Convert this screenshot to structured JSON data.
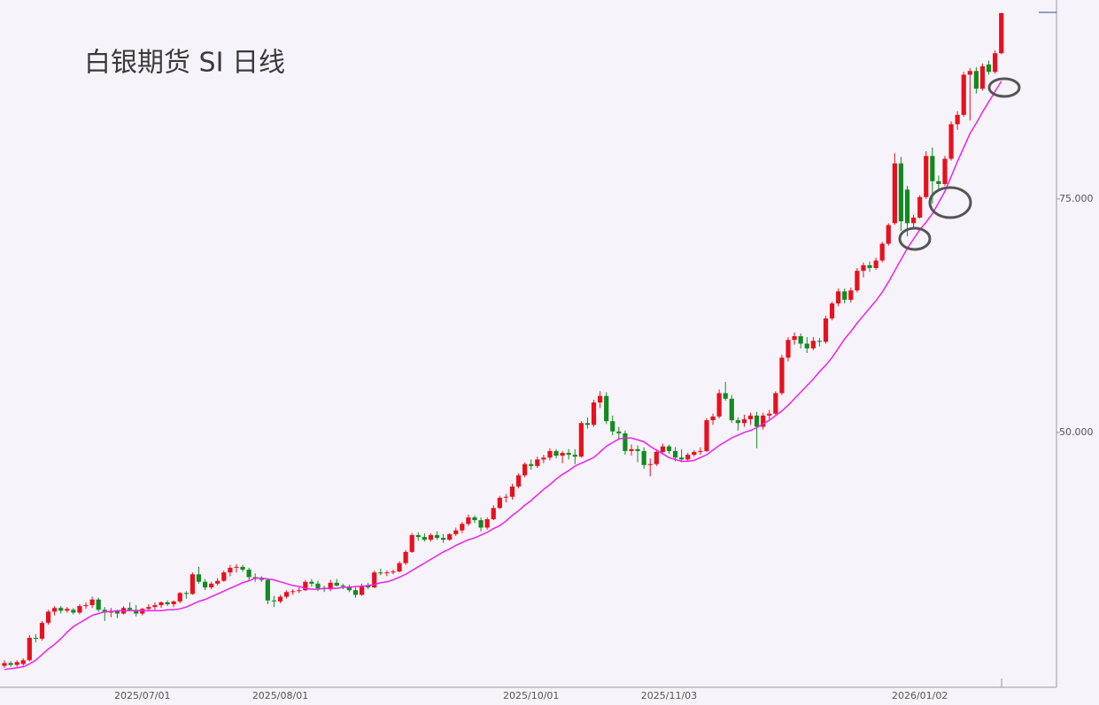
{
  "chart_data": {
    "type": "candlestick",
    "title": "白银期货  SI  日线",
    "categories": [
      null,
      null,
      null,
      null,
      null,
      null,
      null,
      null,
      null,
      null,
      null,
      null,
      null,
      null,
      null,
      null,
      null,
      null,
      null,
      null,
      null,
      null,
      "2025/07/01",
      null,
      null,
      null,
      null,
      null,
      null,
      null,
      null,
      null,
      null,
      null,
      null,
      null,
      null,
      null,
      null,
      null,
      null,
      null,
      null,
      null,
      "2025/08/01",
      null,
      null,
      null,
      null,
      null,
      null,
      null,
      null,
      null,
      null,
      null,
      null,
      null,
      null,
      null,
      null,
      null,
      null,
      null,
      null,
      null,
      null,
      null,
      null,
      null,
      null,
      null,
      null,
      null,
      null,
      null,
      null,
      null,
      null,
      null,
      null,
      null,
      null,
      null,
      "2025/10/01",
      null,
      null,
      null,
      null,
      null,
      null,
      null,
      null,
      null,
      null,
      null,
      null,
      null,
      null,
      null,
      null,
      null,
      null,
      null,
      null,
      null,
      "2025/11/03",
      null,
      null,
      null,
      null,
      null,
      null,
      null,
      null,
      null,
      null,
      null,
      null,
      null,
      null,
      null,
      null,
      null,
      null,
      null,
      null,
      null,
      null,
      null,
      null,
      null,
      null,
      null,
      null,
      null,
      null,
      null,
      null,
      null,
      null,
      null,
      null,
      null,
      null,
      null,
      "2026/01/02",
      null,
      null,
      null,
      null,
      null,
      null,
      null,
      null,
      null,
      null,
      null,
      null,
      null
    ],
    "ohlc": [
      [
        25.0,
        25.6,
        24.8,
        25.3
      ],
      [
        25.3,
        25.5,
        24.9,
        25.1
      ],
      [
        25.1,
        25.6,
        24.9,
        25.4
      ],
      [
        25.2,
        25.8,
        25.0,
        25.6
      ],
      [
        25.6,
        28.3,
        25.5,
        28.0
      ],
      [
        28.0,
        28.4,
        27.5,
        27.9
      ],
      [
        27.9,
        29.8,
        27.7,
        29.6
      ],
      [
        29.6,
        31.0,
        29.4,
        30.8
      ],
      [
        30.8,
        31.4,
        30.4,
        31.2
      ],
      [
        31.2,
        31.4,
        30.6,
        30.9
      ],
      [
        30.9,
        31.3,
        30.7,
        31.1
      ],
      [
        31.0,
        31.2,
        30.5,
        30.7
      ],
      [
        30.7,
        31.6,
        30.5,
        31.4
      ],
      [
        31.4,
        31.8,
        31.1,
        31.5
      ],
      [
        31.5,
        32.4,
        31.2,
        32.1
      ],
      [
        32.1,
        32.3,
        30.8,
        31.0
      ],
      [
        31.0,
        31.3,
        29.8,
        30.7
      ],
      [
        30.7,
        31.2,
        30.2,
        30.9
      ],
      [
        30.9,
        31.0,
        30.1,
        30.6
      ],
      [
        30.6,
        31.4,
        30.5,
        31.2
      ],
      [
        31.2,
        31.8,
        30.9,
        31.0
      ],
      [
        31.0,
        31.5,
        30.3,
        30.6
      ],
      [
        30.6,
        31.2,
        30.4,
        31.1
      ],
      [
        31.1,
        31.6,
        30.9,
        31.3
      ],
      [
        31.3,
        31.8,
        31.0,
        31.5
      ],
      [
        31.5,
        31.9,
        31.2,
        31.8
      ],
      [
        31.8,
        32.0,
        31.4,
        31.6
      ],
      [
        31.6,
        32.0,
        31.3,
        31.9
      ],
      [
        31.9,
        32.9,
        31.7,
        32.8
      ],
      [
        32.8,
        33.0,
        32.2,
        32.7
      ],
      [
        32.7,
        35.0,
        32.6,
        34.8
      ],
      [
        34.8,
        35.6,
        33.8,
        34.0
      ],
      [
        34.0,
        34.3,
        33.1,
        33.4
      ],
      [
        33.4,
        34.0,
        33.2,
        33.8
      ],
      [
        33.8,
        34.4,
        33.6,
        34.1
      ],
      [
        34.1,
        35.2,
        34.0,
        35.0
      ],
      [
        35.0,
        35.8,
        34.6,
        35.5
      ],
      [
        35.5,
        35.9,
        35.0,
        35.6
      ],
      [
        35.6,
        35.8,
        35.1,
        35.3
      ],
      [
        35.3,
        35.5,
        34.2,
        34.5
      ],
      [
        34.5,
        34.9,
        34.0,
        34.3
      ],
      [
        34.3,
        34.6,
        34.0,
        34.2
      ],
      [
        34.2,
        34.3,
        31.6,
        32.0
      ],
      [
        32.0,
        32.5,
        31.3,
        31.9
      ],
      [
        31.9,
        32.6,
        31.7,
        32.4
      ],
      [
        32.4,
        33.1,
        32.2,
        32.9
      ],
      [
        32.9,
        33.2,
        32.6,
        33.0
      ],
      [
        33.0,
        33.4,
        32.8,
        33.1
      ],
      [
        33.1,
        34.2,
        33.0,
        34.0
      ],
      [
        34.0,
        34.3,
        33.5,
        33.8
      ],
      [
        33.8,
        34.1,
        33.0,
        33.3
      ],
      [
        33.3,
        33.6,
        32.9,
        33.2
      ],
      [
        33.2,
        34.2,
        33.0,
        33.9
      ],
      [
        33.9,
        34.3,
        33.5,
        33.6
      ],
      [
        33.6,
        33.8,
        33.2,
        33.5
      ],
      [
        33.5,
        33.7,
        32.9,
        33.1
      ],
      [
        33.1,
        33.4,
        32.3,
        32.6
      ],
      [
        32.6,
        33.8,
        32.5,
        33.6
      ],
      [
        33.6,
        33.9,
        33.2,
        33.4
      ],
      [
        33.4,
        35.2,
        33.3,
        35.0
      ],
      [
        35.0,
        35.4,
        34.7,
        34.9
      ],
      [
        34.9,
        35.2,
        34.6,
        35.0
      ],
      [
        35.0,
        35.3,
        34.8,
        35.1
      ],
      [
        35.1,
        36.2,
        35.0,
        36.0
      ],
      [
        36.0,
        37.4,
        35.8,
        37.2
      ],
      [
        37.2,
        39.2,
        37.1,
        39.0
      ],
      [
        39.0,
        39.3,
        38.4,
        38.8
      ],
      [
        38.8,
        39.2,
        38.3,
        38.5
      ],
      [
        38.5,
        39.2,
        38.3,
        39.0
      ],
      [
        39.0,
        39.4,
        38.5,
        38.7
      ],
      [
        38.7,
        39.1,
        38.2,
        38.5
      ],
      [
        38.5,
        39.2,
        38.4,
        39.1
      ],
      [
        39.1,
        39.8,
        38.9,
        39.5
      ],
      [
        39.5,
        40.4,
        39.2,
        40.2
      ],
      [
        40.2,
        41.2,
        40.0,
        40.9
      ],
      [
        40.9,
        41.1,
        40.3,
        40.6
      ],
      [
        40.6,
        40.9,
        39.4,
        39.8
      ],
      [
        39.8,
        40.9,
        39.6,
        40.7
      ],
      [
        40.7,
        42.2,
        40.6,
        41.9
      ],
      [
        41.9,
        43.2,
        41.8,
        43.0
      ],
      [
        43.0,
        43.4,
        42.5,
        43.1
      ],
      [
        43.1,
        44.5,
        42.8,
        44.2
      ],
      [
        44.2,
        45.6,
        44.0,
        45.4
      ],
      [
        45.4,
        46.8,
        45.2,
        46.6
      ],
      [
        46.6,
        47.1,
        46.0,
        46.4
      ],
      [
        46.4,
        47.4,
        46.2,
        47.1
      ],
      [
        47.1,
        47.6,
        46.7,
        47.3
      ],
      [
        47.3,
        48.3,
        47.0,
        48.0
      ],
      [
        48.0,
        48.2,
        47.2,
        47.5
      ],
      [
        47.5,
        48.0,
        46.7,
        47.8
      ],
      [
        47.8,
        48.2,
        47.1,
        47.6
      ],
      [
        47.6,
        48.2,
        46.6,
        47.4
      ],
      [
        47.4,
        51.2,
        47.3,
        51.0
      ],
      [
        51.0,
        51.6,
        50.4,
        50.8
      ],
      [
        50.8,
        53.5,
        50.6,
        53.2
      ],
      [
        53.2,
        54.4,
        52.6,
        53.9
      ],
      [
        53.9,
        54.3,
        50.9,
        51.2
      ],
      [
        51.2,
        51.8,
        49.7,
        50.1
      ],
      [
        50.1,
        50.6,
        49.2,
        49.9
      ],
      [
        49.9,
        50.2,
        47.6,
        48.0
      ],
      [
        48.0,
        48.7,
        47.5,
        48.2
      ],
      [
        48.2,
        48.6,
        46.8,
        48.0
      ],
      [
        48.0,
        48.4,
        46.1,
        46.5
      ],
      [
        46.5,
        47.2,
        45.3,
        46.6
      ],
      [
        46.6,
        48.2,
        46.4,
        47.9
      ],
      [
        47.9,
        48.8,
        47.6,
        48.5
      ],
      [
        48.5,
        48.7,
        47.7,
        48.0
      ],
      [
        48.0,
        48.4,
        46.9,
        47.3
      ],
      [
        47.3,
        48.2,
        46.8,
        47.1
      ],
      [
        47.1,
        47.8,
        46.9,
        47.6
      ],
      [
        47.6,
        48.1,
        47.4,
        47.9
      ],
      [
        47.9,
        48.4,
        47.6,
        48.0
      ],
      [
        48.0,
        51.5,
        47.9,
        51.3
      ],
      [
        51.3,
        52.0,
        50.8,
        51.7
      ],
      [
        51.7,
        54.6,
        51.5,
        54.2
      ],
      [
        54.2,
        55.4,
        53.4,
        53.6
      ],
      [
        53.6,
        54.0,
        51.0,
        51.3
      ],
      [
        51.3,
        51.6,
        50.2,
        51.0
      ],
      [
        51.0,
        51.9,
        50.6,
        51.4
      ],
      [
        51.4,
        52.1,
        50.8,
        51.8
      ],
      [
        51.8,
        52.2,
        48.3,
        50.6
      ],
      [
        50.6,
        52.1,
        50.3,
        51.8
      ],
      [
        51.8,
        52.4,
        51.4,
        52.0
      ],
      [
        52.0,
        54.4,
        51.9,
        54.2
      ],
      [
        54.2,
        58.3,
        54.0,
        58.0
      ],
      [
        58.0,
        60.2,
        57.6,
        59.9
      ],
      [
        59.9,
        60.7,
        59.4,
        60.3
      ],
      [
        60.3,
        60.6,
        59.0,
        59.5
      ],
      [
        59.5,
        60.2,
        58.5,
        59.0
      ],
      [
        59.0,
        60.2,
        58.8,
        59.8
      ],
      [
        59.8,
        60.1,
        59.2,
        59.7
      ],
      [
        59.7,
        62.5,
        59.5,
        62.2
      ],
      [
        62.2,
        64.0,
        62.0,
        63.8
      ],
      [
        63.8,
        65.4,
        63.5,
        65.1
      ],
      [
        65.1,
        65.4,
        63.8,
        64.2
      ],
      [
        64.2,
        65.5,
        63.9,
        65.2
      ],
      [
        65.2,
        67.6,
        65.0,
        67.3
      ],
      [
        67.3,
        68.2,
        66.6,
        67.9
      ],
      [
        67.9,
        68.3,
        67.2,
        67.6
      ],
      [
        67.6,
        68.7,
        67.4,
        68.4
      ],
      [
        68.4,
        70.4,
        68.2,
        70.2
      ],
      [
        70.2,
        72.4,
        70.0,
        72.2
      ],
      [
        72.4,
        79.9,
        72.2,
        78.8
      ],
      [
        78.8,
        79.5,
        71.6,
        72.6
      ],
      [
        76.0,
        76.4,
        71.0,
        72.4
      ],
      [
        72.4,
        73.3,
        71.8,
        73.0
      ],
      [
        73.0,
        75.4,
        72.9,
        75.2
      ],
      [
        75.2,
        80.1,
        75.0,
        79.6
      ],
      [
        79.6,
        80.5,
        74.5,
        76.9
      ],
      [
        76.9,
        77.5,
        75.9,
        76.6
      ],
      [
        76.6,
        79.6,
        76.4,
        79.3
      ],
      [
        79.3,
        83.3,
        79.1,
        83.0
      ],
      [
        83.0,
        84.4,
        82.4,
        84.0
      ],
      [
        84.0,
        88.6,
        83.8,
        88.3
      ],
      [
        88.3,
        89.0,
        83.4,
        88.7
      ],
      [
        88.7,
        89.1,
        86.3,
        86.8
      ],
      [
        86.8,
        89.5,
        86.6,
        89.2
      ],
      [
        89.4,
        89.8,
        88.3,
        88.6
      ],
      [
        88.6,
        90.9,
        88.4,
        90.6
      ],
      [
        90.6,
        94.9,
        90.5,
        94.9
      ]
    ],
    "up_color": "#e8101e",
    "down_color": "#138a20",
    "ma_color": "#f01ef0",
    "ma_values": [
      24.6,
      24.7,
      24.8,
      24.9,
      25.2,
      25.6,
      26.2,
      26.8,
      27.3,
      27.9,
      28.6,
      29.2,
      29.6,
      30.0,
      30.4,
      30.6,
      30.8,
      30.8,
      30.9,
      30.9,
      30.9,
      30.9,
      30.9,
      30.9,
      30.9,
      30.9,
      31.0,
      31.0,
      31.1,
      31.3,
      31.6,
      31.9,
      32.1,
      32.4,
      32.7,
      33.0,
      33.3,
      33.6,
      33.9,
      34.1,
      34.4,
      34.4,
      34.3,
      34.2,
      34.0,
      33.8,
      33.6,
      33.5,
      33.3,
      33.2,
      33.2,
      33.3,
      33.3,
      33.3,
      33.4,
      33.4,
      33.5,
      33.5,
      33.6,
      33.7,
      33.9,
      34.0,
      34.2,
      34.5,
      34.8,
      35.2,
      35.6,
      36.0,
      36.4,
      36.8,
      37.2,
      37.5,
      37.9,
      38.2,
      38.5,
      38.7,
      39.0,
      39.3,
      39.7,
      40.0,
      40.5,
      41.1,
      41.6,
      42.2,
      42.7,
      43.3,
      43.9,
      44.4,
      45.0,
      45.5,
      45.9,
      46.4,
      46.7,
      47.0,
      47.3,
      47.9,
      48.5,
      48.9,
      49.3,
      49.4,
      49.4,
      49.2,
      49.0,
      48.5,
      48.1,
      47.7,
      47.3,
      47.1,
      46.9,
      46.9,
      47.0,
      47.3,
      47.6,
      48.1,
      48.6,
      49.0,
      49.4,
      49.7,
      50.0,
      50.2,
      50.5,
      50.9,
      51.3,
      51.8,
      52.3,
      52.9,
      53.6,
      54.3,
      55.0,
      55.7,
      56.5,
      57.2,
      58.0,
      59.0,
      60.0,
      60.8,
      61.7,
      62.5,
      63.3,
      64.1,
      65.0,
      66.1,
      67.3,
      68.5,
      69.7,
      70.7,
      71.7,
      72.5,
      73.4,
      74.6,
      75.8,
      77.4,
      79.0,
      80.5,
      82.0,
      83.1,
      84.3,
      85.4,
      86.5,
      87.6
    ],
    "ylim": [
      22.7,
      96.3
    ],
    "yticks": [
      {
        "value": 50,
        "label": "50.000"
      },
      {
        "value": 75,
        "label": "75.000"
      }
    ],
    "grid": false
  }
}
